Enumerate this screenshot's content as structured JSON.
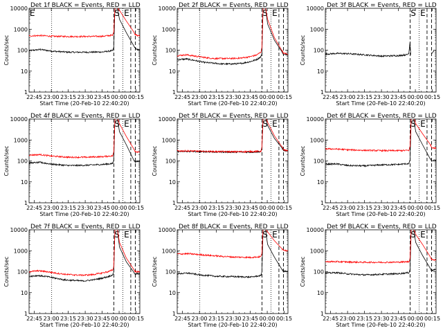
{
  "figure": {
    "x_tick_labels": [
      "22:45",
      "23:00",
      "23:15",
      "23:30",
      "23:45",
      "00:00",
      "00:15"
    ],
    "y_tick_labels": [
      "1",
      "10",
      "100",
      "1000",
      "10000"
    ],
    "xlabel": "Start Time (20-Feb-10 22:40:20)",
    "ylabel": "Counts/sec",
    "series_colors": {
      "events": "#000000",
      "lld": "#ff0000"
    }
  },
  "chart_data": [
    {
      "type": "line",
      "title": "Det 1f BLACK = Events, RED = LLD",
      "markers": [
        "E",
        "S",
        "E"
      ],
      "y_scale": "log",
      "ylim": [
        1,
        10000
      ],
      "xlim_minutes": [
        0,
        98
      ],
      "event_lines": {
        "dotted": [
          20,
          83
        ],
        "dashed": [
          75,
          90,
          94
        ]
      },
      "series": [
        {
          "key": "events",
          "x": [
            0,
            10,
            20,
            35,
            50,
            65,
            74,
            75,
            76,
            78,
            80,
            86,
            93,
            94,
            96,
            98
          ],
          "y": [
            95,
            108,
            90,
            80,
            80,
            82,
            95,
            140,
            12000,
            12000,
            3000,
            700,
            150,
            120,
            110,
            100
          ]
        },
        {
          "key": "lld",
          "x": [
            0,
            10,
            20,
            35,
            50,
            65,
            74,
            75,
            76,
            78,
            80,
            86,
            93,
            94,
            96,
            98
          ],
          "y": [
            480,
            500,
            460,
            450,
            450,
            460,
            520,
            800,
            12000,
            12000,
            8000,
            2500,
            700,
            550,
            500,
            480
          ]
        }
      ]
    },
    {
      "type": "line",
      "title": "Det 2f BLACK = Events, RED = LLD",
      "markers": [
        "S",
        "E"
      ],
      "y_scale": "log",
      "ylim": [
        1,
        10000
      ],
      "xlim_minutes": [
        0,
        98
      ],
      "event_lines": {
        "dotted": [
          20,
          83
        ],
        "dashed": [
          75,
          90,
          94
        ]
      },
      "series": [
        {
          "key": "events",
          "x": [
            0,
            8,
            16,
            24,
            32,
            40,
            48,
            56,
            64,
            70,
            74,
            75,
            76,
            78,
            80,
            86,
            93,
            94,
            96,
            98
          ],
          "y": [
            35,
            38,
            32,
            26,
            24,
            22,
            22,
            23,
            28,
            35,
            48,
            70,
            12000,
            12000,
            1800,
            300,
            80,
            60,
            65,
            60
          ]
        },
        {
          "key": "lld",
          "x": [
            0,
            8,
            16,
            24,
            32,
            40,
            48,
            56,
            64,
            70,
            74,
            75,
            76,
            78,
            80,
            86,
            93,
            94,
            96,
            98
          ],
          "y": [
            55,
            60,
            52,
            45,
            40,
            40,
            40,
            42,
            48,
            58,
            80,
            130,
            12000,
            12000,
            3000,
            400,
            90,
            70,
            70,
            65
          ]
        }
      ]
    },
    {
      "type": "line",
      "title": "Det 3f BLACK = Events, RED = LLD",
      "markers": [
        "S",
        "E"
      ],
      "y_scale": "log",
      "ylim": [
        1,
        10000
      ],
      "xlim_minutes": [
        0,
        98
      ],
      "event_lines": {
        "dotted": [
          83
        ],
        "dashed": [
          75,
          90,
          94
        ]
      },
      "series": [
        {
          "key": "events",
          "x": [
            0,
            10,
            20,
            35,
            50,
            65,
            73,
            74,
            75,
            75.5,
            90,
            94,
            95,
            96
          ],
          "y": [
            65,
            70,
            68,
            60,
            52,
            55,
            62,
            80,
            250,
            60,
            null,
            70,
            80,
            95
          ]
        }
      ]
    },
    {
      "type": "line",
      "title": "Det 4f BLACK = Events, RED = LLD",
      "markers": [
        "S",
        "E"
      ],
      "y_scale": "log",
      "ylim": [
        1,
        10000
      ],
      "xlim_minutes": [
        0,
        98
      ],
      "event_lines": {
        "dotted": [
          20,
          83
        ],
        "dashed": [
          75,
          90,
          94
        ]
      },
      "series": [
        {
          "key": "events",
          "x": [
            0,
            10,
            20,
            35,
            50,
            65,
            74,
            75,
            76,
            78,
            80,
            86,
            93,
            94,
            96,
            98
          ],
          "y": [
            80,
            85,
            70,
            60,
            62,
            68,
            75,
            110,
            12000,
            12000,
            2500,
            600,
            100,
            90,
            95,
            100
          ]
        },
        {
          "key": "lld",
          "x": [
            0,
            10,
            20,
            35,
            50,
            65,
            74,
            75,
            76,
            78,
            80,
            86,
            93,
            94,
            96,
            98
          ],
          "y": [
            190,
            200,
            170,
            150,
            150,
            160,
            175,
            280,
            12000,
            12000,
            6000,
            1500,
            350,
            270,
            260,
            250
          ]
        }
      ]
    },
    {
      "type": "line",
      "title": "Det 5f BLACK = Events, RED = LLD",
      "markers": [
        "S",
        "E"
      ],
      "y_scale": "log",
      "ylim": [
        1,
        10000
      ],
      "xlim_minutes": [
        0,
        98
      ],
      "event_lines": {
        "dotted": [
          20,
          83
        ],
        "dashed": [
          75,
          90,
          94
        ]
      },
      "series": [
        {
          "key": "events",
          "x": [
            0,
            10,
            20,
            35,
            50,
            65,
            74,
            75,
            76,
            78,
            80,
            86,
            93,
            94,
            96,
            98
          ],
          "y": [
            280,
            285,
            275,
            270,
            265,
            265,
            275,
            400,
            12000,
            12000,
            5000,
            1200,
            400,
            330,
            310,
            300
          ]
        },
        {
          "key": "lld",
          "x": [
            0,
            10,
            20,
            35,
            50,
            65,
            74,
            75,
            76,
            78,
            80,
            86,
            93,
            94,
            96,
            98
          ],
          "y": [
            300,
            300,
            290,
            280,
            275,
            280,
            290,
            450,
            12000,
            12000,
            7000,
            1600,
            450,
            350,
            320,
            310
          ]
        }
      ]
    },
    {
      "type": "line",
      "title": "Det 6f BLACK = Events, RED = LLD",
      "markers": [
        "S",
        "E"
      ],
      "y_scale": "log",
      "ylim": [
        1,
        10000
      ],
      "xlim_minutes": [
        0,
        98
      ],
      "event_lines": {
        "dotted": [
          83
        ],
        "dashed": [
          75,
          90,
          94
        ]
      },
      "series": [
        {
          "key": "events",
          "x": [
            0,
            10,
            20,
            35,
            50,
            65,
            74,
            75,
            76,
            78,
            80,
            86,
            93,
            94,
            96,
            98
          ],
          "y": [
            70,
            72,
            60,
            58,
            65,
            68,
            75,
            110,
            12000,
            12000,
            2500,
            600,
            120,
            100,
            105,
            110
          ]
        },
        {
          "key": "lld",
          "x": [
            0,
            10,
            20,
            35,
            50,
            65,
            74,
            75,
            76,
            78,
            80,
            86,
            93,
            94,
            96,
            98
          ],
          "y": [
            380,
            370,
            340,
            320,
            310,
            310,
            320,
            500,
            12000,
            12000,
            6000,
            2000,
            600,
            450,
            420,
            400
          ]
        }
      ]
    },
    {
      "type": "line",
      "title": "Det 7f BLACK = Events, RED = LLD",
      "markers": [
        "S",
        "E"
      ],
      "y_scale": "log",
      "ylim": [
        1,
        10000
      ],
      "xlim_minutes": [
        0,
        98
      ],
      "event_lines": {
        "dotted": [
          20,
          83
        ],
        "dashed": [
          75,
          90,
          94
        ]
      },
      "series": [
        {
          "key": "events",
          "x": [
            0,
            8,
            16,
            24,
            32,
            40,
            48,
            56,
            64,
            70,
            74,
            75,
            76,
            78,
            80,
            86,
            93,
            94,
            96,
            98
          ],
          "y": [
            60,
            65,
            58,
            48,
            40,
            38,
            36,
            40,
            48,
            58,
            70,
            100,
            12000,
            12000,
            1500,
            300,
            90,
            75,
            80,
            75
          ]
        },
        {
          "key": "lld",
          "x": [
            0,
            8,
            16,
            24,
            32,
            40,
            48,
            56,
            64,
            70,
            74,
            75,
            76,
            78,
            80,
            86,
            93,
            94,
            96,
            98
          ],
          "y": [
            100,
            110,
            100,
            85,
            75,
            70,
            68,
            72,
            85,
            100,
            120,
            180,
            12000,
            12000,
            2500,
            450,
            120,
            100,
            100,
            95
          ]
        }
      ]
    },
    {
      "type": "line",
      "title": "Det 8f BLACK = Events, RED = LLD",
      "markers": [
        "S",
        "E"
      ],
      "y_scale": "log",
      "ylim": [
        1,
        10000
      ],
      "xlim_minutes": [
        0,
        98
      ],
      "event_lines": {
        "dotted": [
          20,
          83
        ],
        "dashed": [
          75,
          90,
          94
        ]
      },
      "series": [
        {
          "key": "events",
          "x": [
            0,
            10,
            20,
            35,
            50,
            65,
            74,
            75,
            76,
            78,
            80,
            86,
            93,
            94,
            96,
            98
          ],
          "y": [
            80,
            85,
            70,
            60,
            58,
            55,
            65,
            100,
            12000,
            12000,
            2000,
            500,
            120,
            100,
            105,
            100
          ]
        },
        {
          "key": "lld",
          "x": [
            0,
            10,
            20,
            35,
            50,
            65,
            74,
            75,
            76,
            78,
            80,
            86,
            93,
            94,
            96,
            98
          ],
          "y": [
            700,
            720,
            650,
            560,
            500,
            480,
            520,
            800,
            12000,
            12000,
            8000,
            3000,
            1200,
            1100,
            1050,
            1000
          ]
        }
      ]
    },
    {
      "type": "line",
      "title": "Det 9f BLACK = Events, RED = LLD",
      "markers": [
        "S",
        "E"
      ],
      "y_scale": "log",
      "ylim": [
        1,
        10000
      ],
      "xlim_minutes": [
        0,
        98
      ],
      "event_lines": {
        "dotted": [
          83
        ],
        "dashed": [
          75,
          90,
          94
        ]
      },
      "series": [
        {
          "key": "events",
          "x": [
            0,
            10,
            20,
            35,
            50,
            65,
            74,
            75,
            76,
            78,
            80,
            86,
            93,
            94,
            96,
            98
          ],
          "y": [
            85,
            90,
            78,
            70,
            75,
            80,
            90,
            130,
            12000,
            12000,
            2500,
            600,
            140,
            115,
            120,
            125
          ]
        },
        {
          "key": "lld",
          "x": [
            0,
            10,
            20,
            35,
            50,
            65,
            74,
            75,
            76,
            78,
            80,
            86,
            93,
            94,
            96,
            98
          ],
          "y": [
            300,
            300,
            290,
            280,
            280,
            285,
            300,
            450,
            12000,
            12000,
            6000,
            2000,
            500,
            380,
            370,
            360
          ]
        }
      ]
    }
  ]
}
